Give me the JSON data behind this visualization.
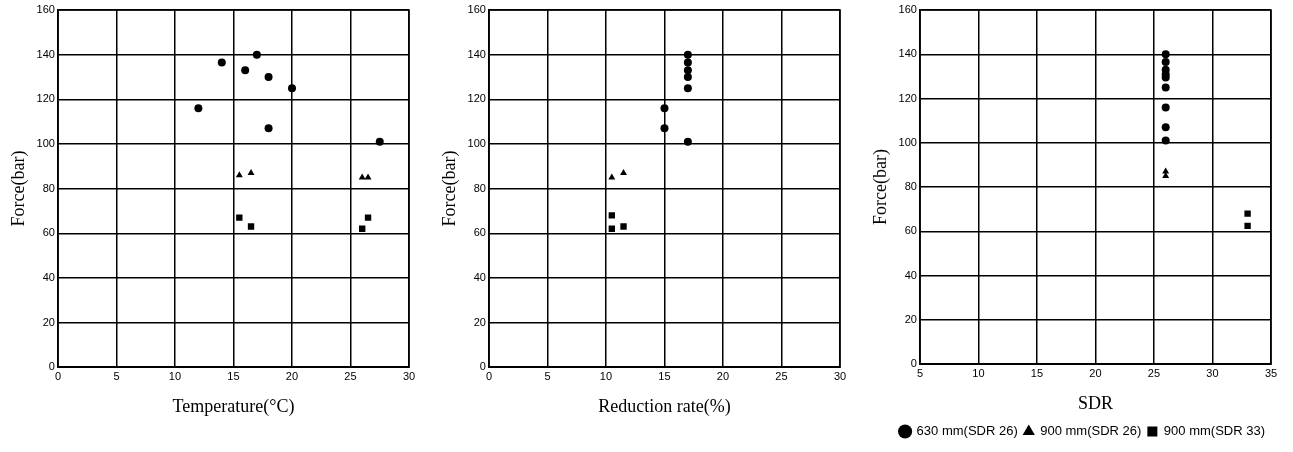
{
  "chart_data": [
    {
      "type": "scatter",
      "xlabel": "Temperature(°C)",
      "ylabel": "Force(bar)",
      "xlim": [
        0,
        30
      ],
      "xticks": [
        0,
        5,
        10,
        15,
        20,
        25,
        30
      ],
      "ylim": [
        0,
        160
      ],
      "yticks": [
        0,
        20,
        40,
        60,
        80,
        100,
        120,
        140,
        160
      ],
      "grid": true,
      "legend": false,
      "series": [
        {
          "marker": "circle",
          "color": "#000000",
          "x": [
            14,
            17,
            16,
            18,
            20,
            12,
            18,
            27.5
          ],
          "values": [
            136.5,
            140,
            133,
            130,
            125,
            116,
            107,
            101
          ]
        },
        {
          "marker": "triangle",
          "color": "#000000",
          "x": [
            15.5,
            16.5,
            26,
            26.5
          ],
          "values": [
            86,
            87,
            85,
            85
          ]
        },
        {
          "marker": "square",
          "color": "#000000",
          "x": [
            15.5,
            16.5,
            26,
            26.5
          ],
          "values": [
            67,
            63,
            62,
            67
          ]
        }
      ]
    },
    {
      "type": "scatter",
      "xlabel": "Reduction rate(%)",
      "ylabel": "Force(bar)",
      "xlim": [
        0,
        30
      ],
      "xticks": [
        0,
        5,
        10,
        15,
        20,
        25,
        30
      ],
      "ylim": [
        0,
        160
      ],
      "yticks": [
        0,
        20,
        40,
        60,
        80,
        100,
        120,
        140,
        160
      ],
      "grid": true,
      "legend": false,
      "series": [
        {
          "marker": "circle",
          "color": "#000000",
          "x": [
            17,
            17,
            17,
            17,
            17,
            15,
            15,
            17
          ],
          "values": [
            140,
            136.5,
            133,
            130,
            125,
            116,
            107,
            101
          ]
        },
        {
          "marker": "triangle",
          "color": "#000000",
          "x": [
            10.5,
            11.5
          ],
          "values": [
            85,
            87
          ]
        },
        {
          "marker": "square",
          "color": "#000000",
          "x": [
            10.5,
            10.5,
            11.5
          ],
          "values": [
            68,
            62,
            63
          ]
        }
      ]
    },
    {
      "type": "scatter",
      "xlabel": "SDR",
      "ylabel": "Force(bar)",
      "xlim": [
        5,
        35
      ],
      "xticks": [
        5,
        10,
        15,
        20,
        25,
        30,
        35
      ],
      "ylim": [
        0,
        160
      ],
      "yticks": [
        0,
        20,
        40,
        60,
        80,
        100,
        120,
        140,
        160
      ],
      "grid": true,
      "legend": "bottom right",
      "series": [
        {
          "name": "630 mm(SDR 26)",
          "marker": "circle",
          "color": "#000000",
          "x": [
            26,
            26,
            26,
            26,
            26,
            26,
            26,
            26,
            26
          ],
          "values": [
            140,
            136.5,
            133,
            131,
            129.5,
            125,
            116,
            107,
            101
          ]
        },
        {
          "name": "900 mm(SDR 26)",
          "marker": "triangle",
          "color": "#000000",
          "x": [
            26,
            26
          ],
          "values": [
            87,
            85
          ]
        },
        {
          "name": "900 mm(SDR 33)",
          "marker": "square",
          "color": "#000000",
          "x": [
            33,
            33
          ],
          "values": [
            68,
            62.5
          ]
        }
      ]
    }
  ]
}
